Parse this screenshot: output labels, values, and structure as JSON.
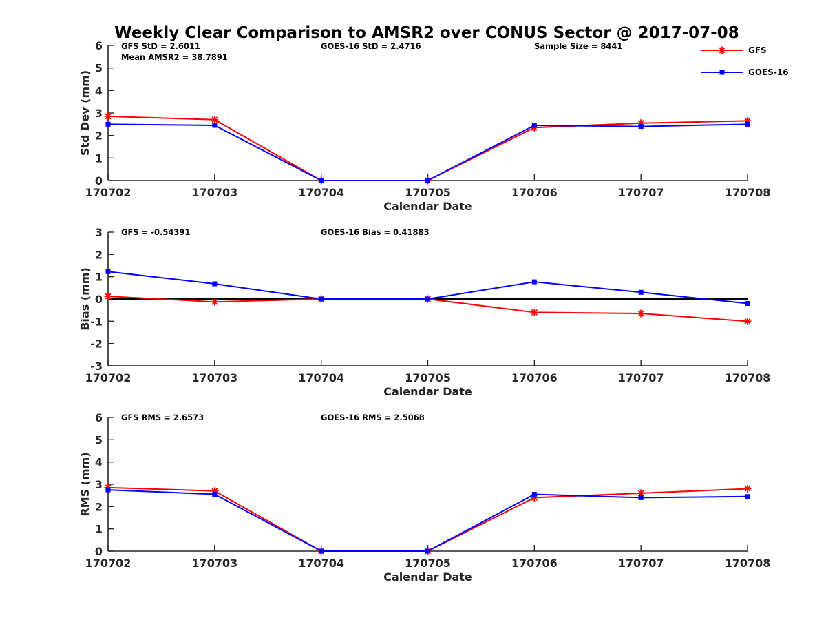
{
  "chart_data": {
    "title": "Weekly Clear Comparison to AMSR2 over CONUS Sector @ 2017-07-08",
    "legend": {
      "placement": "top-right",
      "entries": [
        {
          "name": "GFS",
          "color": "#ff0000",
          "marker": "asterisk"
        },
        {
          "name": "GOES-16",
          "color": "#0000ff",
          "marker": "square"
        }
      ]
    },
    "panels": [
      {
        "type": "line",
        "xlabel": "Calendar Date",
        "ylabel": "Std Dev (mm)",
        "ylim": [
          0,
          6
        ],
        "yticks": [
          "0",
          "1",
          "2",
          "3",
          "4",
          "5",
          "6"
        ],
        "categories": [
          "170702",
          "170703",
          "170704",
          "170705",
          "170706",
          "170707",
          "170708"
        ],
        "zero_line": false,
        "annotations": [
          {
            "text": "GFS StD = 2.6011",
            "col": "left",
            "row": 0
          },
          {
            "text": "Mean AMSR2 = 38.7891",
            "col": "left",
            "row": 1
          },
          {
            "text": "GOES-16 StD = 2.4716",
            "col": "mid",
            "row": 0
          },
          {
            "text": "Sample Size = 8441",
            "col": "right",
            "row": 0
          }
        ],
        "series": [
          {
            "name": "GFS",
            "color": "#ff0000",
            "marker": "asterisk",
            "values": [
              2.85,
              2.7,
              0.0,
              0.0,
              2.35,
              2.55,
              2.65
            ]
          },
          {
            "name": "GOES-16",
            "color": "#0000ff",
            "marker": "square",
            "values": [
              2.5,
              2.45,
              0.0,
              0.0,
              2.45,
              2.4,
              2.5
            ]
          }
        ]
      },
      {
        "type": "line",
        "xlabel": "Calendar Date",
        "ylabel": "Bias (mm)",
        "ylim": [
          -3,
          3
        ],
        "yticks": [
          "-3",
          "-2",
          "-1",
          "0",
          "1",
          "2",
          "3"
        ],
        "categories": [
          "170702",
          "170703",
          "170704",
          "170705",
          "170706",
          "170707",
          "170708"
        ],
        "zero_line": true,
        "annotations": [
          {
            "text": "GFS = -0.54391",
            "col": "left",
            "row": 0
          },
          {
            "text": "GOES-16 Bias  = 0.41883",
            "col": "mid",
            "row": 0
          }
        ],
        "series": [
          {
            "name": "GFS",
            "color": "#ff0000",
            "marker": "asterisk",
            "values": [
              0.12,
              -0.13,
              0.0,
              0.0,
              -0.6,
              -0.65,
              -1.0
            ]
          },
          {
            "name": "GOES-16",
            "color": "#0000ff",
            "marker": "square",
            "values": [
              1.23,
              0.68,
              0.0,
              0.0,
              0.77,
              0.3,
              -0.2
            ]
          }
        ]
      },
      {
        "type": "line",
        "xlabel": "Calendar Date",
        "ylabel": "RMS (mm)",
        "ylim": [
          0,
          6
        ],
        "yticks": [
          "0",
          "1",
          "2",
          "3",
          "4",
          "5",
          "6"
        ],
        "categories": [
          "170702",
          "170703",
          "170704",
          "170705",
          "170706",
          "170707",
          "170708"
        ],
        "zero_line": false,
        "annotations": [
          {
            "text": "GFS RMS = 2.6573",
            "col": "left",
            "row": 0
          },
          {
            "text": "GOES-16 RMS = 2.5068",
            "col": "mid",
            "row": 0
          }
        ],
        "series": [
          {
            "name": "GFS",
            "color": "#ff0000",
            "marker": "asterisk",
            "values": [
              2.85,
              2.7,
              0.0,
              0.0,
              2.4,
              2.6,
              2.8
            ]
          },
          {
            "name": "GOES-16",
            "color": "#0000ff",
            "marker": "square",
            "values": [
              2.75,
              2.55,
              0.0,
              0.0,
              2.55,
              2.4,
              2.45
            ]
          }
        ]
      }
    ]
  }
}
